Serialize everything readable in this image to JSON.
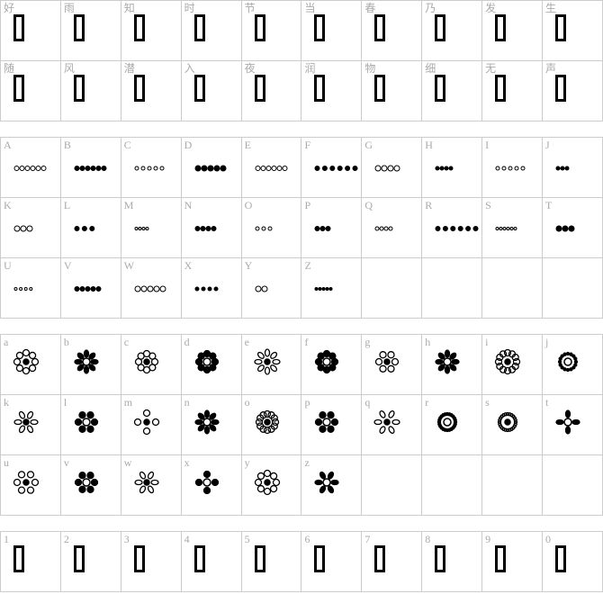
{
  "sections": [
    {
      "kind": "tofu",
      "labels": [
        "好",
        "雨",
        "知",
        "时",
        "节",
        "当",
        "春",
        "乃",
        "发",
        "生",
        "随",
        "风",
        "潜",
        "入",
        "夜",
        "润",
        "物",
        "细",
        "无",
        "声"
      ]
    },
    {
      "kind": "border",
      "labels": [
        "A",
        "B",
        "C",
        "D",
        "E",
        "F",
        "G",
        "H",
        "I",
        "J",
        "K",
        "L",
        "M",
        "N",
        "O",
        "P",
        "Q",
        "R",
        "S",
        "T",
        "U",
        "V",
        "W",
        "X",
        "Y",
        "Z"
      ]
    },
    {
      "kind": "radial",
      "labels": [
        "a",
        "b",
        "c",
        "d",
        "e",
        "f",
        "g",
        "h",
        "i",
        "j",
        "k",
        "l",
        "m",
        "n",
        "o",
        "p",
        "q",
        "r",
        "s",
        "t",
        "u",
        "v",
        "w",
        "x",
        "y",
        "z"
      ]
    },
    {
      "kind": "tofu",
      "labels": [
        "1",
        "2",
        "3",
        "4",
        "5",
        "6",
        "7",
        "8",
        "9",
        "0"
      ]
    }
  ],
  "colors": {
    "grid": "#cccccc",
    "label": "#aaaaaa",
    "glyph": "#000000"
  }
}
